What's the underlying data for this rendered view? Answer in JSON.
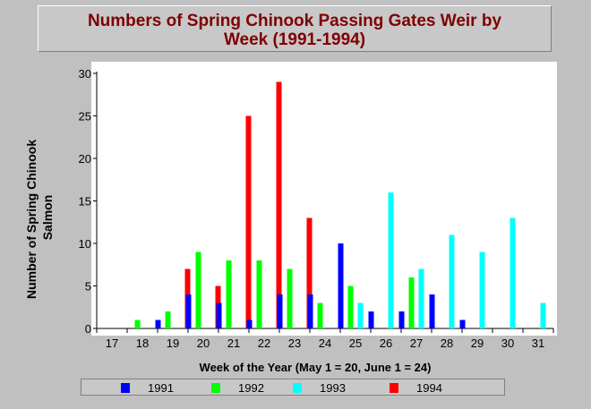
{
  "chart_data": {
    "type": "bar",
    "title_line1": "Numbers of Spring Chinook Passing Gates Weir by",
    "title_line2": "Week (1991-1994)",
    "xlabel": "Week of the Year (May 1 = 20, June 1 = 24)",
    "ylabel_line1": "Number of Spring Chinook",
    "ylabel_line2": "Salmon",
    "ylim": [
      0,
      30
    ],
    "yticks": [
      0,
      5,
      10,
      15,
      20,
      25,
      30
    ],
    "categories": [
      "17",
      "18",
      "19",
      "20",
      "21",
      "22",
      "23",
      "24",
      "25",
      "26",
      "27",
      "28",
      "29",
      "30",
      "31"
    ],
    "series": [
      {
        "name": "1991",
        "color": "#0000ff",
        "values": [
          0,
          0,
          1,
          4,
          3,
          1,
          4,
          4,
          10,
          2,
          2,
          4,
          1,
          0,
          0
        ]
      },
      {
        "name": "1992",
        "color": "#00ff00",
        "values": [
          0,
          1,
          2,
          9,
          8,
          8,
          7,
          3,
          5,
          0,
          6,
          0,
          0,
          0,
          0
        ]
      },
      {
        "name": "1993",
        "color": "#00ffff",
        "values": [
          0,
          0,
          0,
          0,
          0,
          0,
          0,
          0,
          3,
          16,
          7,
          11,
          9,
          13,
          3
        ]
      },
      {
        "name": "1994",
        "color": "#ff0000",
        "values": [
          0,
          0,
          7,
          5,
          25,
          29,
          13,
          0,
          0,
          0,
          0,
          0,
          0,
          0,
          0
        ]
      }
    ],
    "grid": false,
    "legend_position": "bottom"
  }
}
